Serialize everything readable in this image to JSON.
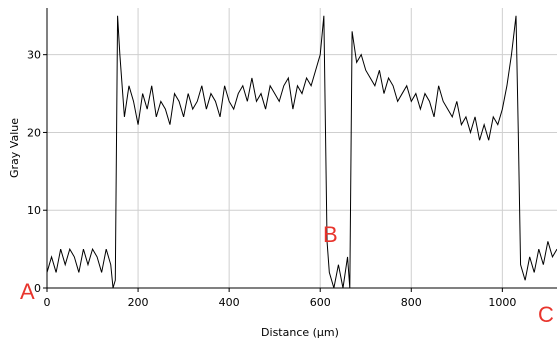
{
  "chart_data": {
    "type": "line",
    "xlabel": "Distance (µm)",
    "ylabel": "Gray Value",
    "annotations": [
      "A",
      "B",
      "C"
    ],
    "color": "#000000",
    "grid": true,
    "xlim": [
      0,
      1120
    ],
    "ylim": [
      0,
      36
    ],
    "xticks": [
      0,
      200,
      400,
      600,
      800,
      1000
    ],
    "yticks": [
      0,
      10,
      20,
      30
    ],
    "x": [
      0,
      10,
      20,
      30,
      40,
      50,
      60,
      70,
      80,
      90,
      100,
      110,
      120,
      130,
      140,
      145,
      150,
      155,
      160,
      170,
      180,
      190,
      200,
      210,
      220,
      230,
      240,
      250,
      260,
      270,
      280,
      290,
      300,
      310,
      320,
      330,
      340,
      350,
      360,
      370,
      380,
      390,
      400,
      410,
      420,
      430,
      440,
      450,
      460,
      470,
      480,
      490,
      500,
      510,
      520,
      530,
      540,
      550,
      560,
      570,
      580,
      590,
      600,
      608,
      615,
      620,
      630,
      640,
      650,
      660,
      665,
      670,
      680,
      690,
      700,
      710,
      720,
      730,
      740,
      750,
      760,
      770,
      780,
      790,
      800,
      810,
      820,
      830,
      840,
      850,
      860,
      870,
      880,
      890,
      900,
      910,
      920,
      930,
      940,
      950,
      960,
      970,
      980,
      990,
      1000,
      1010,
      1020,
      1030,
      1035,
      1040,
      1050,
      1060,
      1070,
      1080,
      1090,
      1100,
      1110,
      1120
    ],
    "values": [
      2,
      4,
      2,
      5,
      3,
      5,
      4,
      2,
      5,
      3,
      5,
      4,
      2,
      5,
      3,
      0,
      1,
      35,
      30,
      22,
      26,
      24,
      21,
      25,
      23,
      26,
      22,
      24,
      23,
      21,
      25,
      24,
      22,
      25,
      23,
      24,
      26,
      23,
      25,
      24,
      22,
      26,
      24,
      23,
      25,
      26,
      24,
      27,
      24,
      25,
      23,
      26,
      25,
      24,
      26,
      27,
      23,
      26,
      25,
      27,
      26,
      28,
      30,
      35,
      6,
      2,
      0,
      3,
      0,
      4,
      0,
      33,
      29,
      30,
      28,
      27,
      26,
      28,
      25,
      27,
      26,
      24,
      25,
      26,
      24,
      25,
      23,
      25,
      24,
      22,
      26,
      24,
      23,
      22,
      24,
      21,
      22,
      20,
      22,
      19,
      21,
      19,
      22,
      21,
      23,
      26,
      30,
      35,
      20,
      3,
      1,
      4,
      2,
      5,
      3,
      6,
      4,
      5
    ]
  }
}
